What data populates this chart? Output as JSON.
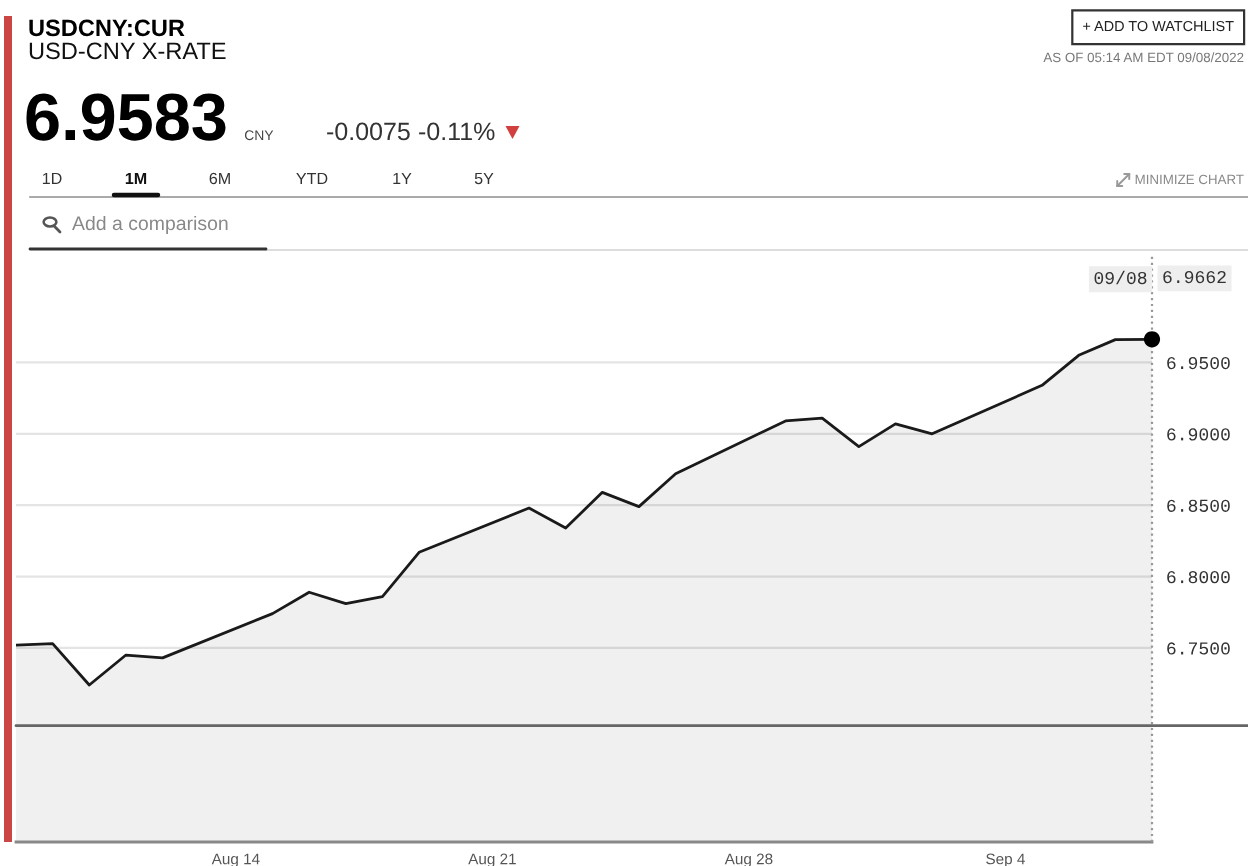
{
  "chart_data": {
    "type": "area",
    "title": "USDCNY:CUR",
    "subtitle": "USD-CNY X-RATE",
    "x": [
      "2022-08-08",
      "2022-08-09",
      "2022-08-10",
      "2022-08-11",
      "2022-08-12",
      "2022-08-15",
      "2022-08-16",
      "2022-08-17",
      "2022-08-18",
      "2022-08-19",
      "2022-08-22",
      "2022-08-23",
      "2022-08-24",
      "2022-08-25",
      "2022-08-26",
      "2022-08-29",
      "2022-08-30",
      "2022-08-31",
      "2022-09-01",
      "2022-09-02",
      "2022-09-05",
      "2022-09-06",
      "2022-09-07",
      "2022-09-08"
    ],
    "series": [
      {
        "color": "#1a1a1a",
        "values": [
          6.752,
          6.753,
          6.724,
          6.745,
          6.743,
          6.774,
          6.789,
          6.781,
          6.786,
          6.817,
          6.848,
          6.834,
          6.859,
          6.849,
          6.872,
          6.909,
          6.911,
          6.891,
          6.907,
          6.9,
          6.934,
          6.955,
          6.966,
          6.9662
        ]
      },
      {
        "type": "scatter",
        "color": "#000000",
        "x": [
          "2022-09-08"
        ],
        "values": [
          6.9662
        ]
      }
    ],
    "xlim": [
      "2022-08-08",
      "2022-09-08"
    ],
    "xticks": [
      {
        "value": "2022-08-14",
        "label": "Aug 14"
      },
      {
        "value": "2022-08-21",
        "label": "Aug 21"
      },
      {
        "value": "2022-08-28",
        "label": "Aug 28"
      },
      {
        "value": "2022-09-04",
        "label": "Sep 4"
      }
    ],
    "ylim": [
      6.614,
      7.026
    ],
    "yticks": [
      {
        "value": 6.75,
        "label": "6.7500"
      },
      {
        "value": 6.8,
        "label": "6.8000"
      },
      {
        "value": 6.85,
        "label": "6.8500"
      },
      {
        "value": 6.9,
        "label": "6.9000"
      },
      {
        "value": 6.95,
        "label": "6.9500"
      }
    ],
    "grid": "y",
    "ref_lines": [
      {
        "axis": "x",
        "value": "2022-09-08",
        "label": "09/08",
        "line_style": "dotted",
        "color": "#999999"
      },
      {
        "axis": "y",
        "value": 6.6955,
        "color": "#666666"
      }
    ],
    "annotations": [
      "6.9583",
      "CNY",
      "-0.0075",
      "-0.11%",
      "+ ADD TO WATCHLIST",
      "AS OF 05:14 AM EDT 09/08/2022",
      "1D",
      "1M",
      "6M",
      "YTD",
      "1Y",
      "5Y",
      "MINIMIZE CHART",
      "Add a comparison",
      "6.9662"
    ]
  }
}
